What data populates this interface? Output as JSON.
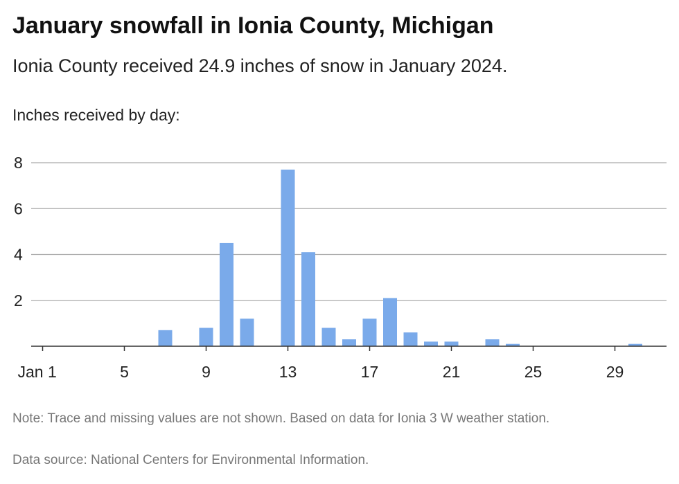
{
  "title": "January snowfall in Ionia County, Michigan",
  "subtitle": "Ionia County received 24.9 inches of snow in January 2024.",
  "note": "Note: Trace and missing values are not shown. Based on data for Ionia 3 W weather station.",
  "source": "Data source: National Centers for Environmental Information.",
  "colors": {
    "bar": "#7aaaea",
    "grid": "#aaaaaa",
    "axis": "#333333"
  },
  "chart_data": {
    "type": "bar",
    "title": "January snowfall in Ionia County, Michigan",
    "ylabel": "Inches received by day:",
    "xlabel": "",
    "x": [
      1,
      2,
      3,
      4,
      5,
      6,
      7,
      8,
      9,
      10,
      11,
      12,
      13,
      14,
      15,
      16,
      17,
      18,
      19,
      20,
      21,
      22,
      23,
      24,
      25,
      26,
      27,
      28,
      29,
      30,
      31
    ],
    "values": [
      0,
      0,
      0,
      0,
      0,
      0,
      0.7,
      0,
      0.8,
      4.5,
      1.2,
      0,
      7.7,
      4.1,
      0.8,
      0.3,
      1.2,
      2.1,
      0.6,
      0.2,
      0.2,
      0,
      0.3,
      0.1,
      0,
      0,
      0,
      0,
      0,
      0.1,
      0
    ],
    "x_tick_labels": [
      "Jan 1",
      "5",
      "9",
      "13",
      "17",
      "21",
      "25",
      "29"
    ],
    "x_tick_values": [
      1,
      5,
      9,
      13,
      17,
      21,
      25,
      29
    ],
    "y_ticks": [
      2,
      4,
      6,
      8
    ],
    "ylim": [
      0,
      8
    ],
    "grid": true
  }
}
